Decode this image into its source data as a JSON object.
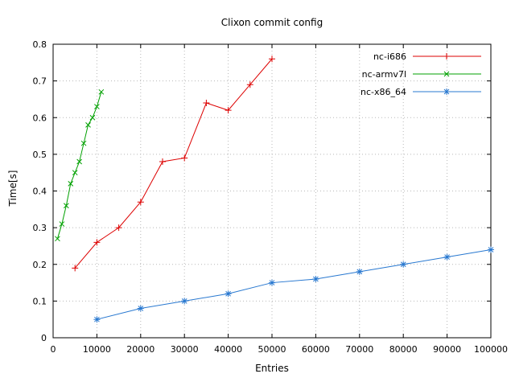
{
  "chart_data": {
    "type": "line",
    "title": "Clixon commit config",
    "xlabel": "Entries",
    "ylabel": "Time[s]",
    "xlim": [
      0,
      100000
    ],
    "ylim": [
      0,
      0.8
    ],
    "xticks": [
      0,
      10000,
      20000,
      30000,
      40000,
      50000,
      60000,
      70000,
      80000,
      90000,
      100000
    ],
    "yticks": [
      0,
      0.1,
      0.2,
      0.3,
      0.4,
      0.5,
      0.6,
      0.7,
      0.8
    ],
    "grid": true,
    "grid_color": "#b8b8b8",
    "legend_position": "top-right",
    "background": "#ffffff",
    "series": [
      {
        "name": "nc-i686",
        "color": "#dd0000",
        "marker": "plus",
        "points": [
          [
            5000,
            0.19
          ],
          [
            10000,
            0.26
          ],
          [
            15000,
            0.3
          ],
          [
            20000,
            0.37
          ],
          [
            25000,
            0.48
          ],
          [
            30000,
            0.49
          ],
          [
            35000,
            0.64
          ],
          [
            40000,
            0.62
          ],
          [
            45000,
            0.69
          ],
          [
            50000,
            0.76
          ]
        ]
      },
      {
        "name": "nc-armv7l",
        "color": "#00a000",
        "marker": "cross",
        "points": [
          [
            1000,
            0.27
          ],
          [
            2000,
            0.31
          ],
          [
            3000,
            0.36
          ],
          [
            4000,
            0.42
          ],
          [
            5000,
            0.45
          ],
          [
            6000,
            0.48
          ],
          [
            7000,
            0.53
          ],
          [
            8000,
            0.58
          ],
          [
            9000,
            0.6
          ],
          [
            10000,
            0.63
          ],
          [
            11000,
            0.67
          ]
        ]
      },
      {
        "name": "nc-x86_64",
        "color": "#2878d0",
        "marker": "asterisk",
        "points": [
          [
            10000,
            0.05
          ],
          [
            20000,
            0.08
          ],
          [
            30000,
            0.1
          ],
          [
            40000,
            0.12
          ],
          [
            50000,
            0.15
          ],
          [
            60000,
            0.16
          ],
          [
            70000,
            0.18
          ],
          [
            80000,
            0.2
          ],
          [
            90000,
            0.22
          ],
          [
            100000,
            0.24
          ]
        ]
      }
    ]
  }
}
